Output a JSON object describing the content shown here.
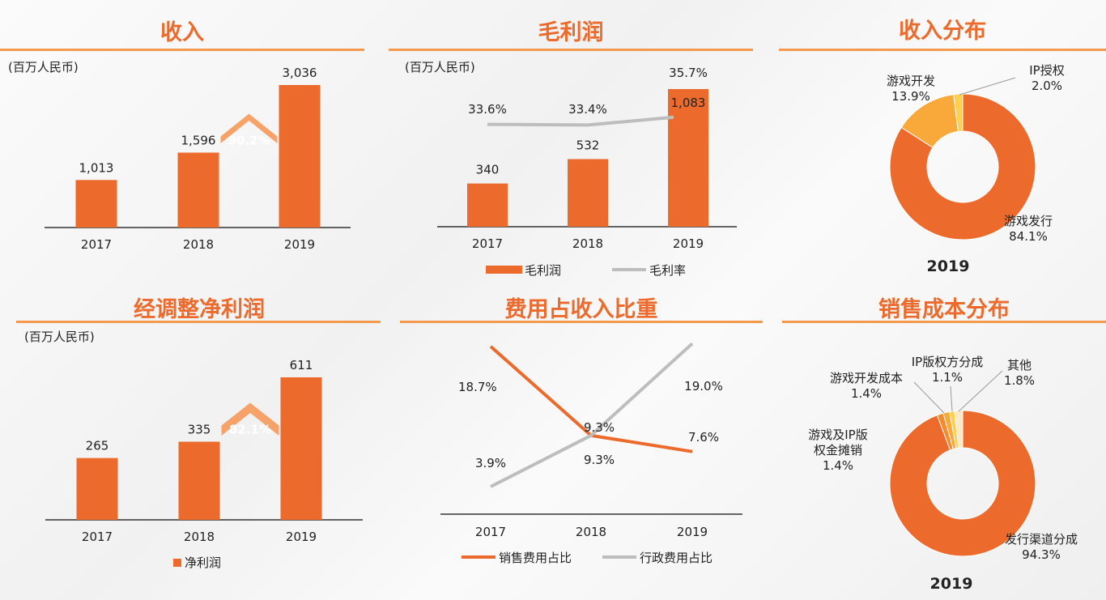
{
  "colors": {
    "accent": "#ec6b2c",
    "growth": "#f6a268",
    "line_gray": "#bdbdbd",
    "donut_light": "#f9a93a",
    "donut_yellow": "#fcd04e",
    "donut_cream": "#fde7c4"
  },
  "revenue": {
    "title": "收入",
    "unit": "(百万人民币)",
    "growth_label": "90.2%",
    "chart_data": {
      "type": "bar",
      "categories": [
        "2017",
        "2018",
        "2019"
      ],
      "values": [
        1013,
        1596,
        3036
      ],
      "value_labels": [
        "1,013",
        "1,596",
        "3,036"
      ]
    }
  },
  "gross_profit": {
    "title": "毛利润",
    "unit": "(百万人民币)",
    "legend": {
      "bar": "毛利润",
      "line": "毛利率"
    },
    "chart_data": {
      "type": "bar",
      "categories": [
        "2017",
        "2018",
        "2019"
      ],
      "series": [
        {
          "name": "毛利润",
          "values": [
            340,
            532,
            1083
          ],
          "labels": [
            "340",
            "532",
            "1,083"
          ]
        },
        {
          "name": "毛利率",
          "values": [
            33.6,
            33.4,
            35.7
          ],
          "labels": [
            "33.6%",
            "33.4%",
            "35.7%"
          ]
        }
      ]
    }
  },
  "revenue_dist": {
    "title": "收入分布",
    "year": "2019",
    "chart_data": {
      "type": "pie",
      "labels": [
        "游戏发行",
        "游戏开发",
        "IP授权"
      ],
      "values": [
        84.1,
        13.9,
        2.0
      ],
      "value_labels": [
        "84.1%",
        "13.9%",
        "2.0%"
      ]
    }
  },
  "adj_profit": {
    "title": "经调整净利润",
    "unit": "(百万人民币)",
    "growth_label": "82.1%",
    "legend": "净利润",
    "chart_data": {
      "type": "bar",
      "categories": [
        "2017",
        "2018",
        "2019"
      ],
      "values": [
        265,
        335,
        611
      ],
      "value_labels": [
        "265",
        "335",
        "611"
      ]
    }
  },
  "expense_ratio": {
    "title": "费用占收入比重",
    "chart_data": {
      "type": "line",
      "categories": [
        "2017",
        "2018",
        "2019"
      ],
      "series": [
        {
          "name": "销售费用占比",
          "values": [
            18.7,
            9.3,
            7.6
          ],
          "labels": [
            "18.7%",
            "9.3%",
            "7.6%"
          ]
        },
        {
          "name": "行政费用占比",
          "values": [
            3.9,
            9.3,
            19.0
          ],
          "labels": [
            "3.9%",
            "9.3%",
            "19.0%"
          ]
        }
      ]
    }
  },
  "cost_dist": {
    "title": "销售成本分布",
    "year": "2019",
    "chart_data": {
      "type": "pie",
      "labels": [
        "发行渠道分成",
        "游戏及IP版权金摊销",
        "游戏开发成本",
        "IP版权方分成",
        "其他"
      ],
      "display_labels": [
        [
          "发行渠道分成"
        ],
        [
          "游戏及IP版",
          "权金摊销"
        ],
        [
          "游戏开发成本"
        ],
        [
          "IP版权方分成"
        ],
        [
          "其他"
        ]
      ],
      "values": [
        94.3,
        1.4,
        1.4,
        1.1,
        1.8
      ],
      "value_labels": [
        "94.3%",
        "1.4%",
        "1.4%",
        "1.1%",
        "1.8%"
      ]
    }
  }
}
